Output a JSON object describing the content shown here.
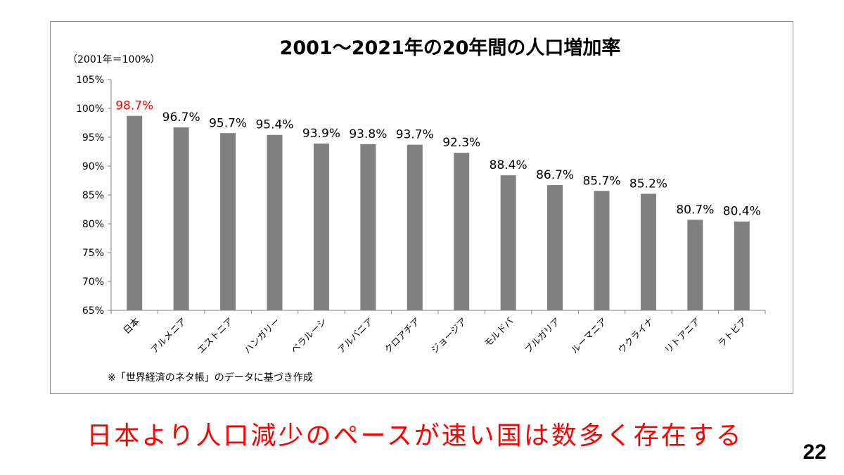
{
  "chart_data": {
    "type": "bar",
    "title": "2001～2021年の20年間の人口増加率",
    "unit_note": "（2001年＝100%）",
    "source_note": "※「世界経済のネタ帳」のデータに基づき作成",
    "categories": [
      "日本",
      "アルメニア",
      "エストニア",
      "ハンガリー",
      "ベラルーシ",
      "アルバニア",
      "クロアチア",
      "ジョージア",
      "モルドバ",
      "ブルガリア",
      "ルーマニア",
      "ウクライナ",
      "リトアニア",
      "ラトビア"
    ],
    "values": [
      98.7,
      96.7,
      95.7,
      95.4,
      93.9,
      93.8,
      93.7,
      92.3,
      88.4,
      86.7,
      85.7,
      85.2,
      80.7,
      80.4
    ],
    "data_labels": [
      "98.7%",
      "96.7%",
      "95.7%",
      "95.4%",
      "93.9%",
      "93.8%",
      "93.7%",
      "92.3%",
      "88.4%",
      "86.7%",
      "85.7%",
      "85.2%",
      "80.7%",
      "80.4%"
    ],
    "y_ticks": [
      "65%",
      "70%",
      "75%",
      "80%",
      "85%",
      "90%",
      "95%",
      "100%",
      "105%"
    ],
    "ylim": [
      65,
      105
    ],
    "grid": false,
    "bar_color": "#808080",
    "highlight_index": 0,
    "highlight_label_color": "#ff0000",
    "label_color": "#000000"
  },
  "caption": "日本より人口減少のペースが速い国は数多く存在する",
  "page_number": "22"
}
